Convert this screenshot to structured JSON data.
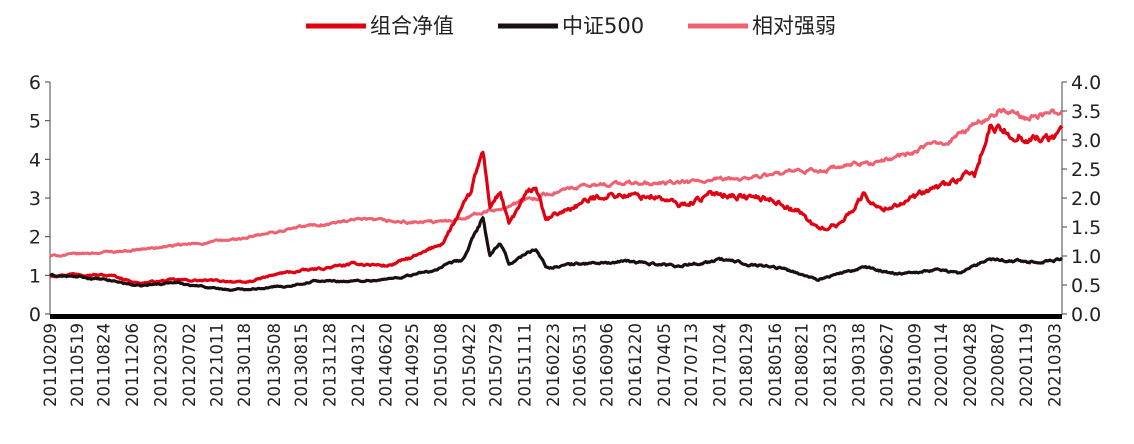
{
  "chart_data": {
    "type": "line",
    "title": "",
    "legend_position": "top-center",
    "grid": false,
    "series": [
      {
        "name": "组合净值",
        "color": "#e00010",
        "axis": "left",
        "anchors": [
          [
            "2011-02-09",
            1.0
          ],
          [
            "2011-06-01",
            1.05
          ],
          [
            "2011-10-01",
            0.98
          ],
          [
            "2012-01-01",
            0.8
          ],
          [
            "2012-05-01",
            0.88
          ],
          [
            "2012-12-01",
            0.85
          ],
          [
            "2013-01-18",
            0.8
          ],
          [
            "2013-06-01",
            1.05
          ],
          [
            "2013-10-01",
            1.15
          ],
          [
            "2014-03-12",
            1.3
          ],
          [
            "2014-07-01",
            1.25
          ],
          [
            "2014-11-01",
            1.55
          ],
          [
            "2015-01-15",
            1.85
          ],
          [
            "2015-04-22",
            3.0
          ],
          [
            "2015-06-12",
            4.2
          ],
          [
            "2015-07-08",
            2.8
          ],
          [
            "2015-08-15",
            3.15
          ],
          [
            "2015-09-15",
            2.3
          ],
          [
            "2015-11-11",
            3.0
          ],
          [
            "2015-12-23",
            3.3
          ],
          [
            "2016-01-28",
            2.4
          ],
          [
            "2016-03-15",
            2.6
          ],
          [
            "2016-06-01",
            2.85
          ],
          [
            "2016-09-06",
            3.1
          ],
          [
            "2016-12-20",
            3.05
          ],
          [
            "2017-03-01",
            3.05
          ],
          [
            "2017-06-01",
            2.8
          ],
          [
            "2017-10-24",
            3.15
          ],
          [
            "2018-01-01",
            3.05
          ],
          [
            "2018-05-16",
            2.95
          ],
          [
            "2018-08-21",
            2.6
          ],
          [
            "2018-10-18",
            2.2
          ],
          [
            "2019-01-03",
            2.3
          ],
          [
            "2019-04-08",
            3.1
          ],
          [
            "2019-06-01",
            2.7
          ],
          [
            "2019-10-09",
            3.0
          ],
          [
            "2020-01-14",
            3.3
          ],
          [
            "2020-03-23",
            3.5
          ],
          [
            "2020-05-15",
            3.6
          ],
          [
            "2020-07-10",
            4.8
          ],
          [
            "2020-09-01",
            4.7
          ],
          [
            "2020-11-19",
            4.6
          ],
          [
            "2021-02-10",
            4.5
          ],
          [
            "2021-03-31",
            4.8
          ]
        ]
      },
      {
        "name": "中证500",
        "color": "#1a1010",
        "axis": "left",
        "anchors": [
          [
            "2011-02-09",
            1.0
          ],
          [
            "2011-06-01",
            0.95
          ],
          [
            "2011-10-01",
            0.85
          ],
          [
            "2012-01-05",
            0.72
          ],
          [
            "2012-05-01",
            0.82
          ],
          [
            "2012-12-03",
            0.62
          ],
          [
            "2013-06-25",
            0.72
          ],
          [
            "2013-10-01",
            0.85
          ],
          [
            "2014-03-12",
            0.85
          ],
          [
            "2014-07-01",
            0.9
          ],
          [
            "2014-12-01",
            1.1
          ],
          [
            "2015-04-01",
            1.4
          ],
          [
            "2015-06-12",
            2.5
          ],
          [
            "2015-07-08",
            1.5
          ],
          [
            "2015-08-15",
            1.8
          ],
          [
            "2015-09-15",
            1.3
          ],
          [
            "2015-12-23",
            1.7
          ],
          [
            "2016-01-28",
            1.2
          ],
          [
            "2016-06-01",
            1.3
          ],
          [
            "2016-12-01",
            1.35
          ],
          [
            "2017-06-01",
            1.25
          ],
          [
            "2017-11-01",
            1.4
          ],
          [
            "2018-06-01",
            1.2
          ],
          [
            "2018-10-18",
            0.9
          ],
          [
            "2019-04-08",
            1.2
          ],
          [
            "2019-08-01",
            1.05
          ],
          [
            "2020-01-14",
            1.15
          ],
          [
            "2020-03-23",
            1.05
          ],
          [
            "2020-07-10",
            1.45
          ],
          [
            "2020-11-19",
            1.35
          ],
          [
            "2021-03-31",
            1.4
          ]
        ]
      },
      {
        "name": "相对强弱",
        "color": "#f06070",
        "axis": "right",
        "anchors": [
          [
            "2011-02-09",
            1.0
          ],
          [
            "2011-12-06",
            1.1
          ],
          [
            "2012-07-02",
            1.2
          ],
          [
            "2013-01-18",
            1.3
          ],
          [
            "2013-08-15",
            1.5
          ],
          [
            "2014-03-12",
            1.62
          ],
          [
            "2014-09-25",
            1.58
          ],
          [
            "2015-01-08",
            1.58
          ],
          [
            "2015-06-12",
            1.75
          ],
          [
            "2015-07-29",
            1.8
          ],
          [
            "2015-11-11",
            1.95
          ],
          [
            "2016-02-23",
            2.1
          ],
          [
            "2016-09-06",
            2.25
          ],
          [
            "2017-04-05",
            2.25
          ],
          [
            "2017-10-24",
            2.3
          ],
          [
            "2018-05-16",
            2.4
          ],
          [
            "2018-12-03",
            2.5
          ],
          [
            "2019-06-27",
            2.65
          ],
          [
            "2020-01-14",
            2.95
          ],
          [
            "2020-04-28",
            3.2
          ],
          [
            "2020-08-07",
            3.5
          ],
          [
            "2020-11-19",
            3.4
          ],
          [
            "2021-03-03",
            3.45
          ],
          [
            "2021-03-31",
            3.5
          ]
        ]
      }
    ],
    "left_axis": {
      "ylim": [
        0,
        6
      ],
      "ticks": [
        "0",
        "1",
        "2",
        "3",
        "4",
        "5",
        "6"
      ]
    },
    "right_axis": {
      "ylim": [
        0,
        4
      ],
      "ticks": [
        "0.0",
        "0.5",
        "1.0",
        "1.5",
        "2.0",
        "2.5",
        "3.0",
        "3.5",
        "4.0"
      ]
    },
    "x_range": [
      "2011-02-09",
      "2021-03-31"
    ],
    "x_ticks": [
      "20110209",
      "20110519",
      "20110824",
      "20111206",
      "20120320",
      "20120702",
      "20121011",
      "20130118",
      "20130508",
      "20130815",
      "20131128",
      "20140312",
      "20140620",
      "20140925",
      "20150108",
      "20150422",
      "20150729",
      "20151111",
      "20160223",
      "20160531",
      "20160906",
      "20161220",
      "20170405",
      "20170713",
      "20171024",
      "20180129",
      "20180516",
      "20180821",
      "20181203",
      "20190318",
      "20190627",
      "20191009",
      "20200114",
      "20200428",
      "20200807",
      "20201119",
      "20210303"
    ]
  }
}
